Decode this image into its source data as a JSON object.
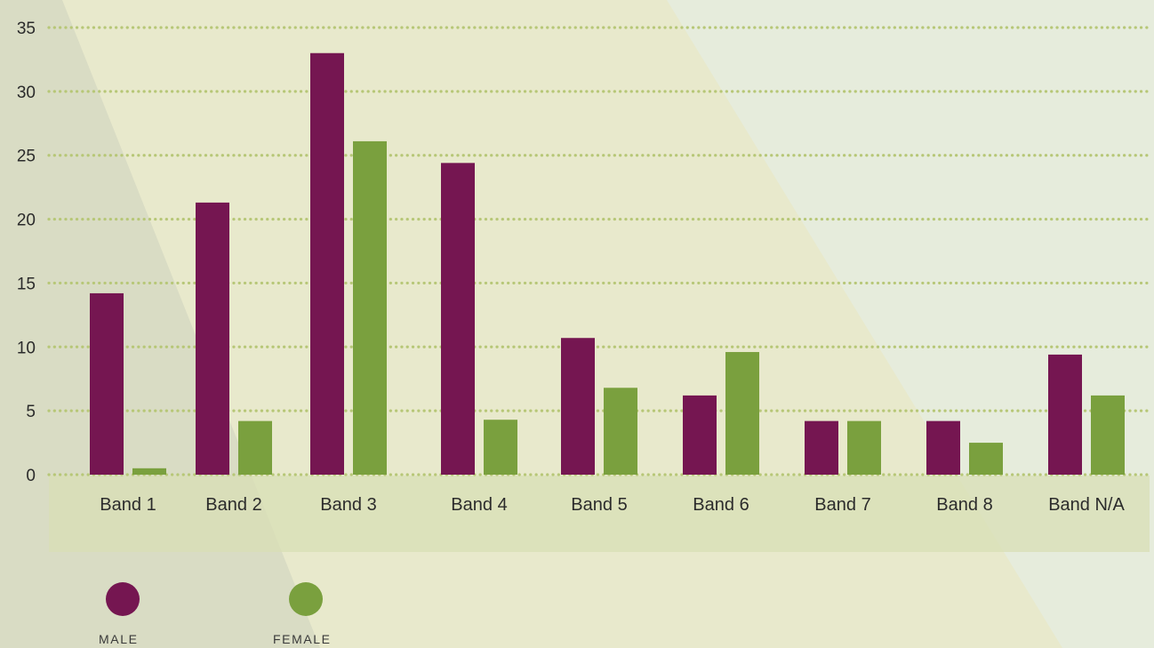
{
  "colors": {
    "male": "#751651",
    "female": "#7aa03e",
    "grid": "#b7c777",
    "axis_band": "#d9e0bd"
  },
  "chart_data": {
    "type": "bar",
    "categories": [
      "Band 1",
      "Band 2",
      "Band 3",
      "Band 4",
      "Band 5",
      "Band 6",
      "Band 7",
      "Band 8",
      "Band N/A"
    ],
    "series": [
      {
        "name": "MALE",
        "values": [
          14.2,
          21.3,
          33.0,
          24.4,
          10.7,
          6.2,
          4.2,
          4.2,
          9.4
        ]
      },
      {
        "name": "FEMALE",
        "values": [
          0.5,
          4.2,
          26.1,
          4.3,
          6.8,
          9.6,
          4.2,
          2.5,
          6.2
        ]
      }
    ],
    "ylim": [
      0,
      35
    ],
    "yticks": [
      0,
      5,
      10,
      15,
      20,
      25,
      30,
      35
    ],
    "grid": true,
    "legend_position": "bottom-left"
  },
  "legend": {
    "male_label": "MALE",
    "female_label": "FEMALE"
  }
}
